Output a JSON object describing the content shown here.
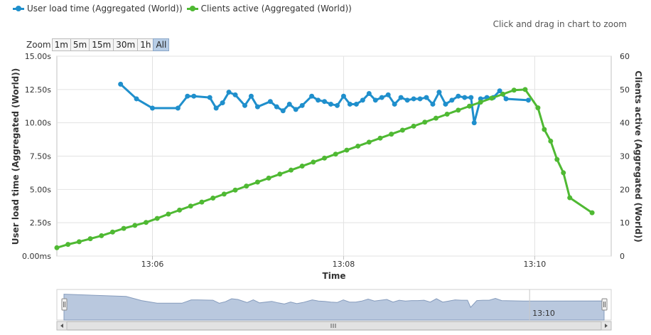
{
  "legend": {
    "items": [
      {
        "label": "User load time (Aggregated (World))",
        "color": "#1f8fcc"
      },
      {
        "label": "Clients active (Aggregated (World))",
        "color": "#4fb933"
      }
    ]
  },
  "zoom_hint": "Click and drag in chart to zoom",
  "zoom": {
    "label": "Zoom",
    "buttons": [
      "1m",
      "5m",
      "15m",
      "30m",
      "1h",
      "All"
    ],
    "selected": "All"
  },
  "chart_data": {
    "type": "line",
    "xlabel": "Time",
    "ylabel_left": "User load time (Aggregated (World))",
    "ylabel_right": "Clients active (Aggregated (World))",
    "x_unit": "minutes",
    "xlim": [
      13.05,
      13.108
    ],
    "x_ticks": [
      "13:06",
      "13:08",
      "13:10"
    ],
    "y_left_ticks": [
      "0.00ms",
      "2.50s",
      "5.00s",
      "7.50s",
      "10.00s",
      "12.50s",
      "15.00s"
    ],
    "y_left_lim": [
      0,
      15
    ],
    "y_right_ticks": [
      "0",
      "10",
      "20",
      "30",
      "40",
      "50",
      "60"
    ],
    "y_right_lim": [
      0,
      60
    ],
    "grid": true,
    "series": [
      {
        "name": "User load time (Aggregated (World))",
        "axis": "left",
        "unit": "s",
        "color": "#1f8fcc",
        "points": [
          [
            "13:05:40",
            12.9
          ],
          [
            "13:05:50",
            11.8
          ],
          [
            "13:06:00",
            11.1
          ],
          [
            "13:06:16",
            11.1
          ],
          [
            "13:06:22",
            12.0
          ],
          [
            "13:06:26",
            12.0
          ],
          [
            "13:06:36",
            11.9
          ],
          [
            "13:06:40",
            11.1
          ],
          [
            "13:06:44",
            11.5
          ],
          [
            "13:06:48",
            12.3
          ],
          [
            "13:06:52",
            12.1
          ],
          [
            "13:06:58",
            11.3
          ],
          [
            "13:07:02",
            12.0
          ],
          [
            "13:07:06",
            11.2
          ],
          [
            "13:07:14",
            11.6
          ],
          [
            "13:07:18",
            11.2
          ],
          [
            "13:07:22",
            10.9
          ],
          [
            "13:07:26",
            11.4
          ],
          [
            "13:07:30",
            11.0
          ],
          [
            "13:07:34",
            11.3
          ],
          [
            "13:07:40",
            12.0
          ],
          [
            "13:07:44",
            11.7
          ],
          [
            "13:07:48",
            11.6
          ],
          [
            "13:07:52",
            11.4
          ],
          [
            "13:07:56",
            11.3
          ],
          [
            "13:08:00",
            12.0
          ],
          [
            "13:08:04",
            11.4
          ],
          [
            "13:08:08",
            11.4
          ],
          [
            "13:08:12",
            11.7
          ],
          [
            "13:08:16",
            12.2
          ],
          [
            "13:08:20",
            11.7
          ],
          [
            "13:08:24",
            11.9
          ],
          [
            "13:08:28",
            12.1
          ],
          [
            "13:08:32",
            11.4
          ],
          [
            "13:08:36",
            11.9
          ],
          [
            "13:08:40",
            11.7
          ],
          [
            "13:08:44",
            11.8
          ],
          [
            "13:08:48",
            11.8
          ],
          [
            "13:08:52",
            11.9
          ],
          [
            "13:08:56",
            11.4
          ],
          [
            "13:09:00",
            12.3
          ],
          [
            "13:09:04",
            11.4
          ],
          [
            "13:09:08",
            11.7
          ],
          [
            "13:09:12",
            12.0
          ],
          [
            "13:09:16",
            11.9
          ],
          [
            "13:09:20",
            11.9
          ],
          [
            "13:09:22",
            10.0
          ],
          [
            "13:09:26",
            11.8
          ],
          [
            "13:09:30",
            11.9
          ],
          [
            "13:09:34",
            11.9
          ],
          [
            "13:09:38",
            12.4
          ],
          [
            "13:09:42",
            11.8
          ],
          [
            "13:09:56",
            11.7
          ]
        ]
      },
      {
        "name": "Clients active (Aggregated (World))",
        "axis": "right",
        "unit": "",
        "color": "#4fb933",
        "points": [
          [
            "13:05:00",
            2.5
          ],
          [
            "13:05:07",
            3.5
          ],
          [
            "13:05:14",
            4.3
          ],
          [
            "13:05:21",
            5.2
          ],
          [
            "13:05:28",
            6.1
          ],
          [
            "13:05:35",
            7.2
          ],
          [
            "13:05:42",
            8.3
          ],
          [
            "13:05:49",
            9.2
          ],
          [
            "13:05:56",
            10.1
          ],
          [
            "13:06:03",
            11.3
          ],
          [
            "13:06:10",
            12.6
          ],
          [
            "13:06:17",
            13.8
          ],
          [
            "13:06:24",
            15.0
          ],
          [
            "13:06:31",
            16.2
          ],
          [
            "13:06:38",
            17.4
          ],
          [
            "13:06:45",
            18.6
          ],
          [
            "13:06:52",
            19.8
          ],
          [
            "13:06:59",
            21.0
          ],
          [
            "13:07:06",
            22.2
          ],
          [
            "13:07:13",
            23.4
          ],
          [
            "13:07:20",
            24.6
          ],
          [
            "13:07:27",
            25.8
          ],
          [
            "13:07:34",
            27.0
          ],
          [
            "13:07:41",
            28.2
          ],
          [
            "13:07:48",
            29.4
          ],
          [
            "13:07:55",
            30.6
          ],
          [
            "13:08:02",
            31.8
          ],
          [
            "13:08:09",
            33.0
          ],
          [
            "13:08:16",
            34.2
          ],
          [
            "13:08:23",
            35.4
          ],
          [
            "13:08:30",
            36.6
          ],
          [
            "13:08:37",
            37.8
          ],
          [
            "13:08:44",
            39.0
          ],
          [
            "13:08:51",
            40.2
          ],
          [
            "13:08:58",
            41.4
          ],
          [
            "13:09:05",
            42.6
          ],
          [
            "13:09:12",
            43.8
          ],
          [
            "13:09:19",
            45.0
          ],
          [
            "13:09:26",
            46.2
          ],
          [
            "13:09:33",
            47.4
          ],
          [
            "13:09:40",
            48.6
          ],
          [
            "13:09:47",
            49.8
          ],
          [
            "13:09:54",
            50.0
          ],
          [
            "13:10:02",
            44.5
          ],
          [
            "13:10:06",
            38.0
          ],
          [
            "13:10:10",
            34.5
          ],
          [
            "13:10:14",
            29.0
          ],
          [
            "13:10:18",
            25.0
          ],
          [
            "13:10:22",
            17.5
          ],
          [
            "13:10:36",
            13.0
          ]
        ]
      }
    ]
  },
  "navigator": {
    "tick_label": "13:10",
    "color": "#b6c6dd"
  }
}
